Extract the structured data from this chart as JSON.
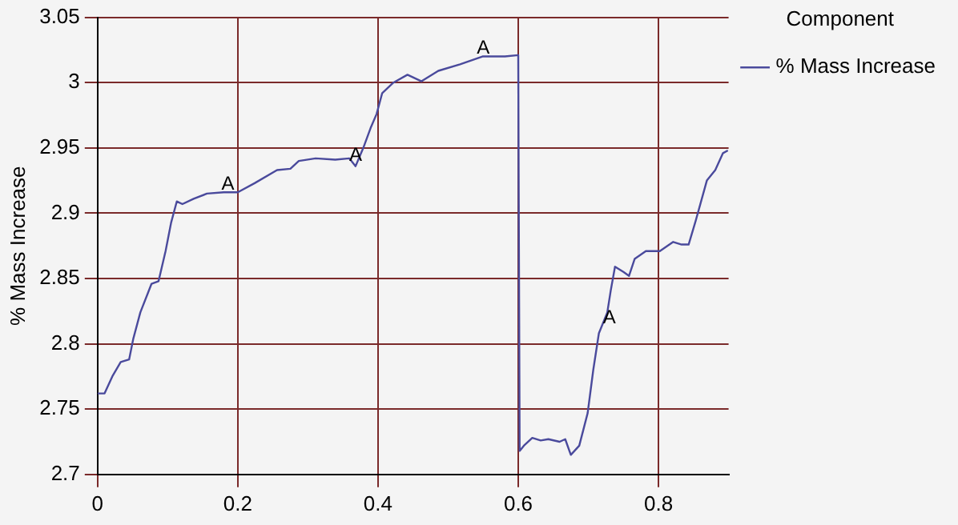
{
  "chart_data": {
    "type": "line",
    "ylabel": "% Mass Increase",
    "legend_title": "Component",
    "legend": "top right",
    "grid": true,
    "marker": "none",
    "line_style": "solid",
    "xlim": [
      0,
      0.9
    ],
    "xticks": [
      0,
      0.2,
      0.4,
      0.6,
      0.8
    ],
    "ylim": [
      2.7,
      3.05
    ],
    "yticks": [
      2.7,
      2.75,
      2.8,
      2.85,
      2.9,
      2.95,
      3,
      3.05
    ],
    "series": [
      {
        "name": "% Mass Increase",
        "color": "#4a4a9c",
        "x": [
          0,
          0.01,
          0.021,
          0.033,
          0.045,
          0.051,
          0.061,
          0.077,
          0.087,
          0.097,
          0.105,
          0.113,
          0.121,
          0.137,
          0.156,
          0.18,
          0.2,
          0.224,
          0.256,
          0.275,
          0.287,
          0.311,
          0.339,
          0.359,
          0.368,
          0.379,
          0.39,
          0.398,
          0.406,
          0.422,
          0.442,
          0.462,
          0.486,
          0.517,
          0.549,
          0.581,
          0.6,
          0.602,
          0.608,
          0.62,
          0.632,
          0.643,
          0.659,
          0.667,
          0.675,
          0.687,
          0.699,
          0.707,
          0.715,
          0.727,
          0.732,
          0.738,
          0.75,
          0.758,
          0.766,
          0.782,
          0.802,
          0.821,
          0.833,
          0.843,
          0.853,
          0.869,
          0.881,
          0.892,
          0.899
        ],
        "values": [
          2.762,
          2.762,
          2.775,
          2.786,
          2.788,
          2.804,
          2.824,
          2.846,
          2.848,
          2.871,
          2.893,
          2.909,
          2.907,
          2.911,
          2.915,
          2.916,
          2.916,
          2.923,
          2.933,
          2.934,
          2.94,
          2.942,
          2.941,
          2.942,
          2.936,
          2.95,
          2.966,
          2.976,
          2.992,
          3,
          3.006,
          3.001,
          3.009,
          3.014,
          3.02,
          3.02,
          3.021,
          2.718,
          2.722,
          2.728,
          2.726,
          2.727,
          2.725,
          2.727,
          2.715,
          2.722,
          2.747,
          2.78,
          2.808,
          2.824,
          2.841,
          2.859,
          2.855,
          2.852,
          2.865,
          2.871,
          2.871,
          2.878,
          2.876,
          2.876,
          2.894,
          2.925,
          2.933,
          2.946,
          2.948
        ]
      }
    ],
    "annotations": [
      {
        "text": "A",
        "x": 0.186,
        "y": 2.922
      },
      {
        "text": "A",
        "x": 0.368,
        "y": 2.944
      },
      {
        "text": "A",
        "x": 0.55,
        "y": 3.026
      },
      {
        "text": "A",
        "x": 0.73,
        "y": 2.82
      }
    ]
  }
}
